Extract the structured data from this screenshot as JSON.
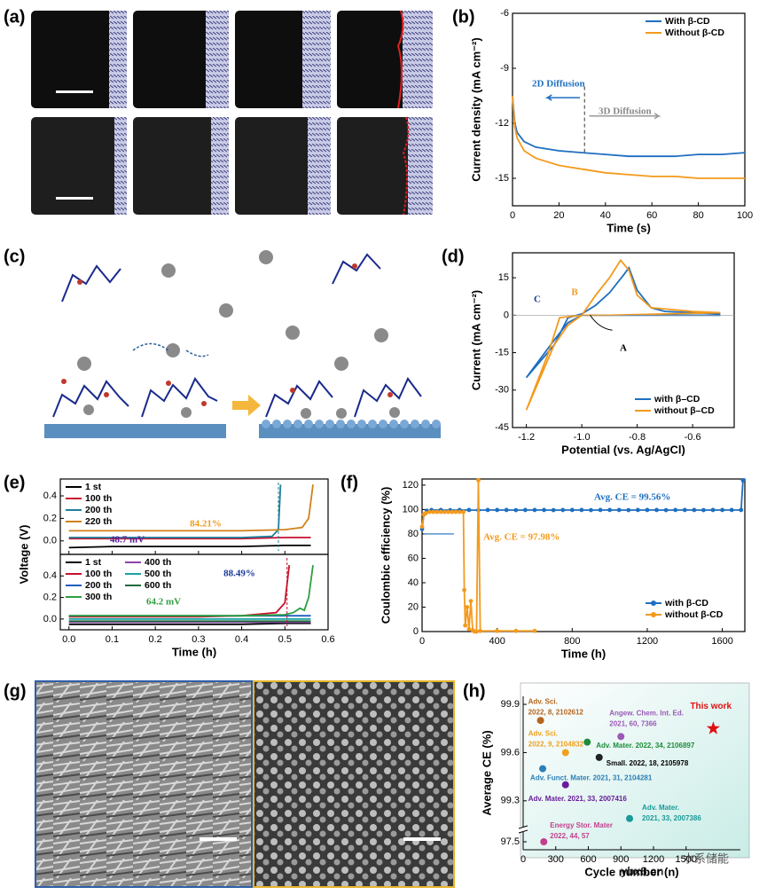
{
  "labels": [
    "(a)",
    "(b)",
    "(c)",
    "(d)",
    "(e)",
    "(f)",
    "(g)",
    "(h)"
  ],
  "watermark": [
    "ybx8.cn",
    "水系储能"
  ],
  "chart_data": [
    {
      "type": "line",
      "xlabel": "Time (s)",
      "ylabel": "Current density (mA cm⁻²)",
      "x": [
        0,
        1,
        2,
        5,
        10,
        20,
        30,
        40,
        50,
        60,
        70,
        80,
        90,
        100
      ],
      "series": [
        {
          "name": "With β-CD",
          "color": "#1f6fc0",
          "values": [
            -10.5,
            -12,
            -12.5,
            -13,
            -13.3,
            -13.5,
            -13.6,
            -13.7,
            -13.8,
            -13.8,
            -13.8,
            -13.7,
            -13.7,
            -13.6
          ]
        },
        {
          "name": "Without β-CD",
          "color": "#f39a1c",
          "values": [
            -10.5,
            -12.2,
            -12.8,
            -13.5,
            -13.9,
            -14.3,
            -14.5,
            -14.7,
            -14.8,
            -14.9,
            -14.9,
            -15,
            -15,
            -15
          ]
        }
      ],
      "xlim": [
        0,
        100
      ],
      "xticks": [
        0,
        20,
        40,
        60,
        80,
        100
      ],
      "ylim": [
        -16.5,
        -6
      ],
      "yticks": [
        -6,
        -9,
        -12,
        -15
      ],
      "legend": "upper right",
      "annotations": [
        "2D Diffusion",
        "3D Diffusion"
      ]
    },
    {
      "type": "line",
      "xlabel": "Potential (vs. Ag/AgCl)",
      "ylabel": "Current (mA cm⁻²)",
      "series": [
        {
          "name": "with β–CD",
          "color": "#1f6fc0",
          "x": [
            -0.5,
            -0.7,
            -0.9,
            -1.0,
            -1.05,
            -1.1,
            -1.2,
            -1.1,
            -1.05,
            -1.0,
            -0.95,
            -0.9,
            -0.85,
            -0.83,
            -0.8,
            -0.75,
            -0.7,
            -0.5
          ],
          "values": [
            0,
            0,
            0,
            0,
            -3,
            -10,
            -25,
            -12,
            -1,
            0.5,
            4,
            9,
            16,
            19,
            10,
            3,
            1.5,
            0.5
          ]
        },
        {
          "name": "without β–CD",
          "color": "#f39a1c",
          "x": [
            -0.5,
            -0.7,
            -0.9,
            -1.0,
            -1.08,
            -1.12,
            -1.2,
            -1.15,
            -1.1,
            -1.05,
            -1.0,
            -0.95,
            -0.9,
            -0.86,
            -0.83,
            -0.8,
            -0.75,
            -0.6,
            -0.5
          ],
          "values": [
            1,
            0.5,
            0,
            0,
            -1,
            -15,
            -38,
            -25,
            -12,
            -4,
            0,
            8,
            15,
            22,
            18,
            8,
            3,
            1.5,
            1
          ]
        }
      ],
      "xlim": [
        -1.25,
        -0.45
      ],
      "xticks": [
        -1.2,
        {
          "value": -1,
          "label": "-1.0"
        },
        -0.8,
        -0.6
      ],
      "ylim": [
        -45,
        25
      ],
      "yticks": [
        15,
        0,
        -15,
        -30,
        -45
      ],
      "legend": "lower right",
      "annotations": [
        "A",
        "B",
        "C"
      ]
    },
    {
      "type": "line",
      "xlabel": "Time (h)",
      "ylabel": "Voltage (V)",
      "xlim": [
        -0.02,
        0.6
      ],
      "xticks": [
        {
          "value": 0,
          "label": "0.0"
        },
        0.1,
        0.2,
        0.3,
        0.4,
        0.5,
        0.6
      ],
      "subplots": [
        {
          "ylim": [
            -0.12,
            0.55
          ],
          "yticks": [
            {
              "value": 0,
              "label": "0.0"
            },
            0.2,
            0.4
          ],
          "legend": "upper left",
          "annotations": [
            "84.21%",
            "48.7 mV"
          ],
          "series": [
            {
              "name": "1 st",
              "color": "#000000",
              "x": [
                0,
                0.1,
                0.2,
                0.3,
                0.4,
                0.5,
                0.56
              ],
              "values": [
                -0.06,
                -0.05,
                -0.05,
                -0.05,
                -0.05,
                -0.04,
                -0.04
              ]
            },
            {
              "name": "100 th",
              "color": "#c8102e",
              "x": [
                0,
                0.1,
                0.2,
                0.3,
                0.4,
                0.5,
                0.56
              ],
              "values": [
                0.02,
                0.02,
                0.02,
                0.02,
                0.02,
                0.03,
                0.03
              ]
            },
            {
              "name": "200 th",
              "color": "#1f7f9a",
              "x": [
                0,
                0.1,
                0.2,
                0.3,
                0.4,
                0.47,
                0.485,
                0.49
              ],
              "values": [
                0.03,
                0.03,
                0.03,
                0.03,
                0.03,
                0.04,
                0.1,
                0.5
              ]
            },
            {
              "name": "220 th",
              "color": "#d0821a",
              "x": [
                0,
                0.1,
                0.2,
                0.3,
                0.4,
                0.5,
                0.54,
                0.555,
                0.565
              ],
              "values": [
                0.09,
                0.09,
                0.09,
                0.09,
                0.09,
                0.1,
                0.12,
                0.2,
                0.5
              ]
            }
          ]
        },
        {
          "ylim": [
            -0.1,
            0.6
          ],
          "yticks": [
            {
              "value": 0,
              "label": "0.0"
            },
            0.2,
            0.4
          ],
          "legend": "upper left",
          "annotations": [
            "88.49%",
            "64.2 mV"
          ],
          "series": [
            {
              "name": "1 st",
              "color": "#000000",
              "x": [
                0,
                0.1,
                0.2,
                0.3,
                0.4,
                0.5,
                0.56
              ],
              "values": [
                -0.05,
                -0.05,
                -0.05,
                -0.05,
                -0.05,
                -0.04,
                -0.04
              ]
            },
            {
              "name": "100 th",
              "color": "#c8102e",
              "x": [
                0,
                0.1,
                0.2,
                0.3,
                0.4,
                0.48,
                0.5,
                0.51
              ],
              "values": [
                0.02,
                0.02,
                0.02,
                0.02,
                0.03,
                0.06,
                0.15,
                0.5
              ]
            },
            {
              "name": "200 th",
              "color": "#1f5fbf",
              "x": [
                0,
                0.1,
                0.2,
                0.3,
                0.4,
                0.5,
                0.56
              ],
              "values": [
                0.03,
                0.03,
                0.03,
                0.03,
                0.03,
                0.03,
                0.03
              ]
            },
            {
              "name": "300 th",
              "color": "#2e9e3e",
              "x": [
                0,
                0.1,
                0.2,
                0.3,
                0.4,
                0.5,
                0.52,
                0.535,
                0.545,
                0.555,
                0.565
              ],
              "values": [
                0.03,
                0.03,
                0.03,
                0.03,
                0.03,
                0.04,
                0.06,
                0.1,
                0.08,
                0.2,
                0.5
              ]
            },
            {
              "name": "400 th",
              "color": "#8e44ad",
              "x": [
                0,
                0.1,
                0.2,
                0.3,
                0.4,
                0.5,
                0.56
              ],
              "values": [
                -0.03,
                -0.03,
                -0.03,
                -0.03,
                -0.03,
                -0.03,
                -0.03
              ]
            },
            {
              "name": "500 th",
              "color": "#17a2a2",
              "x": [
                0,
                0.1,
                0.2,
                0.3,
                0.4,
                0.5,
                0.56
              ],
              "values": [
                0,
                0,
                0,
                0,
                0,
                0,
                0
              ]
            },
            {
              "name": "600 th",
              "color": "#1e6b3a",
              "x": [
                0,
                0.1,
                0.2,
                0.3,
                0.4,
                0.5,
                0.56
              ],
              "values": [
                -0.02,
                -0.02,
                -0.02,
                -0.02,
                -0.02,
                -0.02,
                -0.02
              ]
            }
          ]
        }
      ]
    },
    {
      "type": "line",
      "markers": true,
      "xlabel": "Time (h)",
      "ylabel": "Coulombic efficiency (%)",
      "series": [
        {
          "name": "with β-CD",
          "color": "#1f6fc0",
          "x": [
            0,
            10,
            25,
            50,
            100,
            150,
            200,
            250,
            300,
            350,
            400,
            450,
            500,
            550,
            600,
            650,
            700,
            750,
            800,
            850,
            900,
            950,
            1000,
            1050,
            1100,
            1150,
            1200,
            1250,
            1300,
            1350,
            1400,
            1450,
            1500,
            1550,
            1600,
            1650,
            1700,
            1710
          ],
          "values": [
            84,
            96,
            99,
            99.6,
            99.6,
            99.5,
            99.6,
            99.6,
            99.5,
            99.6,
            99.6,
            99.6,
            99.5,
            99.6,
            99.6,
            99.6,
            99.5,
            99.6,
            99.6,
            99.6,
            99.5,
            99.6,
            99.6,
            99.6,
            99.5,
            99.6,
            99.6,
            99.6,
            99.5,
            99.6,
            99.6,
            99.6,
            99.5,
            99.6,
            99.6,
            99.6,
            99.6,
            124
          ]
        },
        {
          "name": "without β-CD",
          "color": "#f39a1c",
          "x": [
            0,
            10,
            20,
            40,
            60,
            80,
            100,
            120,
            140,
            160,
            180,
            200,
            220,
            225,
            230,
            240,
            250,
            260,
            270,
            280,
            290,
            300,
            310,
            400,
            500,
            600
          ],
          "values": [
            86,
            96,
            97,
            98,
            98,
            98,
            98,
            98,
            98,
            98,
            98,
            98,
            98,
            34,
            5,
            20,
            2,
            25,
            1,
            0,
            0,
            124,
            0.5,
            0.5,
            0.5,
            0.5
          ]
        }
      ],
      "xlim": [
        0,
        1720
      ],
      "xticks": [
        0,
        400,
        800,
        1200,
        1600
      ],
      "ylim": [
        0,
        125
      ],
      "yticks": [
        0,
        20,
        40,
        60,
        80,
        100,
        120
      ],
      "legend": "lower right",
      "annotations": [
        "Avg. CE = 99.56%",
        "Avg. CE = 97.98%"
      ]
    },
    {
      "type": "scatter",
      "xlabel": "Cycle number (n)",
      "ylabel": "Average CE (%)",
      "xlim": [
        0,
        2000
      ],
      "xticks": [
        0,
        300,
        600,
        900,
        1200,
        1500
      ],
      "ylim": [
        97.4,
        99.95
      ],
      "ybreak": [
        97.6,
        99.15
      ],
      "yticks": [
        97.5,
        99.3,
        99.6,
        99.9
      ],
      "points": [
        {
          "label": [
            "Adv. Sci.",
            "2022, 8, 2102612"
          ],
          "color": "#b5651d",
          "x": 160,
          "y": 99.8
        },
        {
          "label": [
            "Adv. Sci.",
            "2022, 9, 2104832"
          ],
          "color": "#f0a020",
          "x": 390,
          "y": 99.6
        },
        {
          "label": [
            "Angew. Chem. Int. Ed.",
            "2021, 60, 7366"
          ],
          "color": "#9b59b6",
          "x": 900,
          "y": 99.7
        },
        {
          "label": [
            "Adv. Mater. 2022, 34, 2106897"
          ],
          "color": "#1e8c3a",
          "x": 590,
          "y": 99.665
        },
        {
          "label": [
            "Small. 2022, 18, 2105978"
          ],
          "color": "#222222",
          "x": 700,
          "y": 99.57
        },
        {
          "label": [
            "Adv. Funct. Mater.  2021, 31, 2104281"
          ],
          "color": "#2c7fb8",
          "x": 180,
          "y": 99.5
        },
        {
          "label": [
            "Adv. Mater. 2021, 33, 2007416"
          ],
          "color": "#6a1b9a",
          "x": 390,
          "y": 99.4
        },
        {
          "label": [
            "Adv. Mater.",
            "2021, 33, 2007386"
          ],
          "color": "#1a9a9a",
          "x": 980,
          "y": 99.19
        },
        {
          "label": [
            "Energy Stor. Mater",
            "2022, 44, 57"
          ],
          "color": "#c2408f",
          "x": 190,
          "y": 97.5
        },
        {
          "label": [
            "This work"
          ],
          "color": "#e01010",
          "marker": "star",
          "x": 1750,
          "y": 99.75
        }
      ]
    }
  ]
}
